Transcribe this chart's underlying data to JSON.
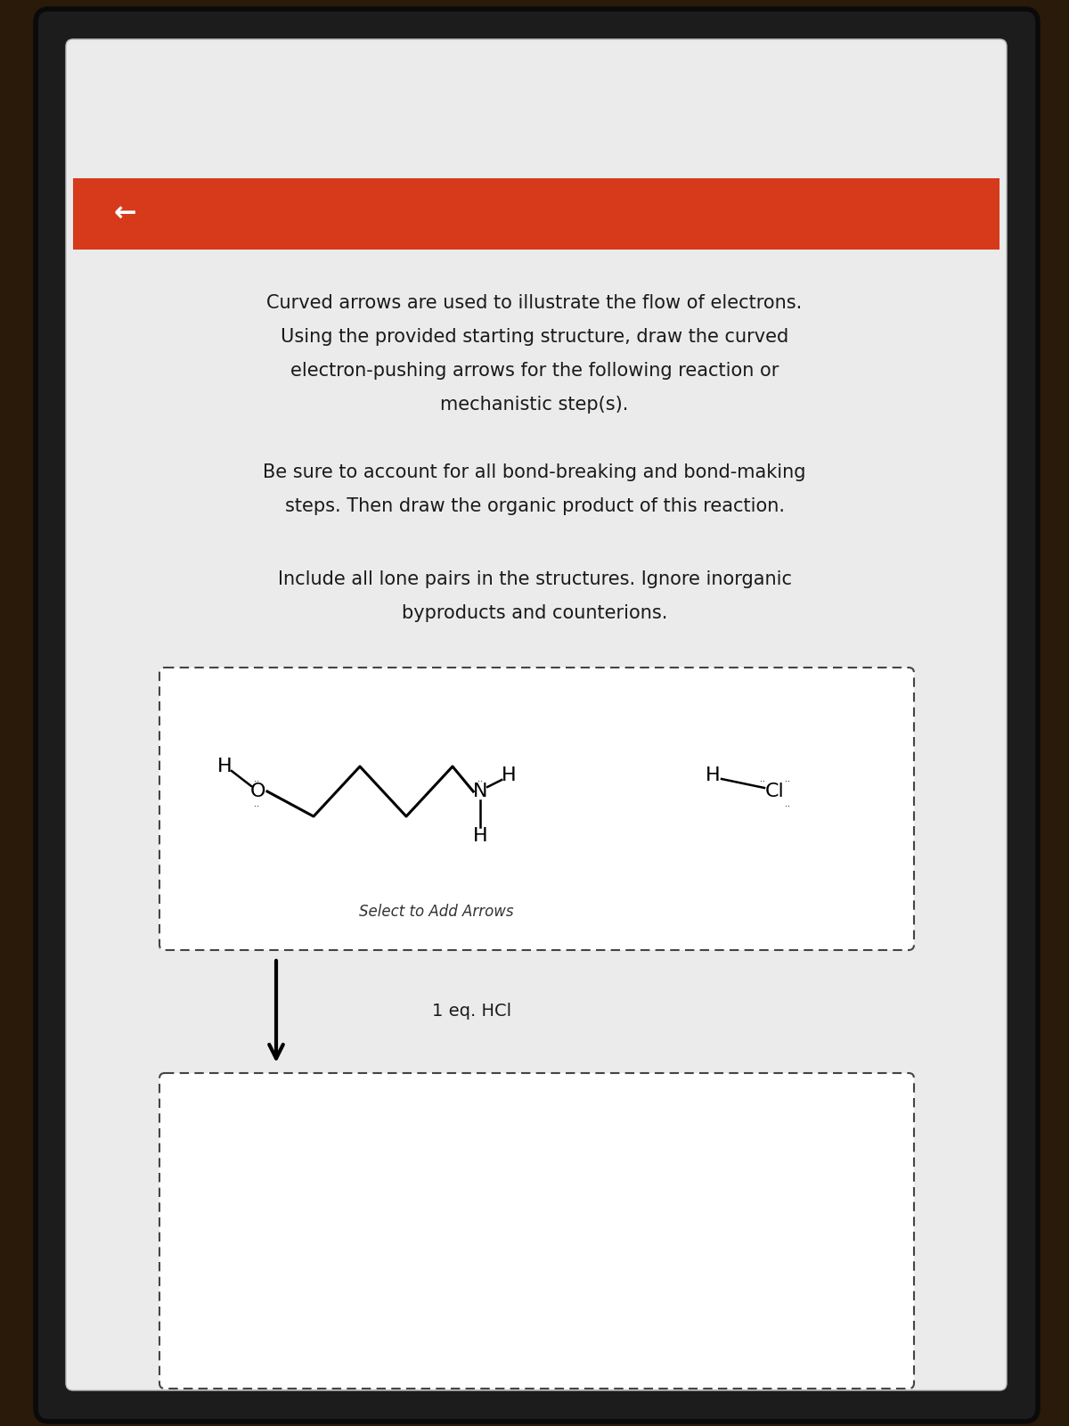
{
  "bg_outer": "#2a1a0a",
  "bg_device": "#1c1c1c",
  "bg_screen": "#ebebeb",
  "header_color": "#d63a1a",
  "header_arrow": "←",
  "text_block1_lines": [
    "Curved arrows are used to illustrate the flow of electrons.",
    "Using the provided starting structure, draw the curved",
    "electron-pushing arrows for the following reaction or",
    "mechanistic step(s)."
  ],
  "text_block2_lines": [
    "Be sure to account for all bond-breaking and bond-making",
    "steps. Then draw the organic product of this reaction."
  ],
  "text_block3_lines": [
    "Include all lone pairs in the structures. Ignore inorganic",
    "byproducts and counterions."
  ],
  "select_text": "Select to Add Arrows",
  "reagent_text": "1 eq. HCl",
  "font_size_main": 15,
  "font_size_chem": 16
}
